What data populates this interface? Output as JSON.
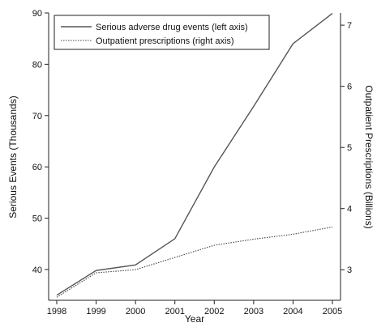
{
  "chart_data": {
    "type": "line",
    "x": [
      1998,
      1999,
      2000,
      2001,
      2002,
      2003,
      2004,
      2005
    ],
    "xlabel": "Year",
    "ylabel_left": "Serious Events (Thousands)",
    "ylabel_right": "Outpatient Prescriptions (Billions)",
    "ylim_left": [
      34,
      90
    ],
    "ylim_right": [
      2.5,
      7.2
    ],
    "yticks_left": [
      40,
      50,
      60,
      70,
      80,
      90
    ],
    "yticks_right": [
      3,
      4,
      5,
      6,
      7
    ],
    "grid": false,
    "legend_position": "top-left",
    "series": [
      {
        "name": "Serious adverse drug events (left axis)",
        "axis": "left",
        "style": "solid",
        "values": [
          35,
          39.8,
          40.9,
          46.0,
          60.0,
          71.8,
          84.0,
          89.9
        ]
      },
      {
        "name": "Outpatient prescriptions (right axis)",
        "axis": "right",
        "style": "dotted",
        "values": [
          2.55,
          2.95,
          3.0,
          3.2,
          3.4,
          3.5,
          3.58,
          3.7
        ]
      }
    ]
  }
}
